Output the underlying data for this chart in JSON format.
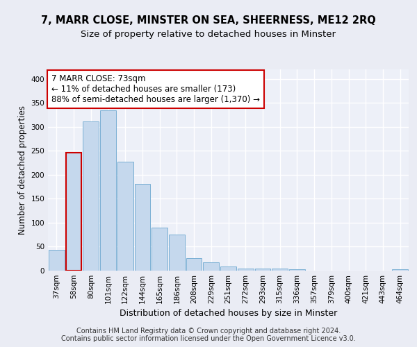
{
  "title1": "7, MARR CLOSE, MINSTER ON SEA, SHEERNESS, ME12 2RQ",
  "title2": "Size of property relative to detached houses in Minster",
  "xlabel": "Distribution of detached houses by size in Minster",
  "ylabel": "Number of detached properties",
  "categories": [
    "37sqm",
    "58sqm",
    "80sqm",
    "101sqm",
    "122sqm",
    "144sqm",
    "165sqm",
    "186sqm",
    "208sqm",
    "229sqm",
    "251sqm",
    "272sqm",
    "293sqm",
    "315sqm",
    "336sqm",
    "357sqm",
    "379sqm",
    "400sqm",
    "421sqm",
    "443sqm",
    "464sqm"
  ],
  "values": [
    44,
    246,
    311,
    335,
    228,
    181,
    90,
    75,
    26,
    17,
    9,
    4,
    5,
    5,
    3,
    0,
    0,
    0,
    0,
    0,
    3
  ],
  "bar_color": "#c5d8ed",
  "bar_edge_color": "#7aafd4",
  "highlight_bar_index": 1,
  "highlight_edge_color": "#cc0000",
  "annotation_box_text": "7 MARR CLOSE: 73sqm\n← 11% of detached houses are smaller (173)\n88% of semi-detached houses are larger (1,370) →",
  "annotation_box_color": "#ffffff",
  "annotation_box_edge_color": "#cc0000",
  "ylim": [
    0,
    420
  ],
  "background_color": "#eaecf4",
  "plot_background_color": "#edf0f8",
  "grid_color": "#ffffff",
  "footer": "Contains HM Land Registry data © Crown copyright and database right 2024.\nContains public sector information licensed under the Open Government Licence v3.0.",
  "title_fontsize": 10.5,
  "subtitle_fontsize": 9.5,
  "xlabel_fontsize": 9,
  "ylabel_fontsize": 8.5,
  "tick_fontsize": 7.5,
  "annotation_fontsize": 8.5,
  "footer_fontsize": 7.0
}
